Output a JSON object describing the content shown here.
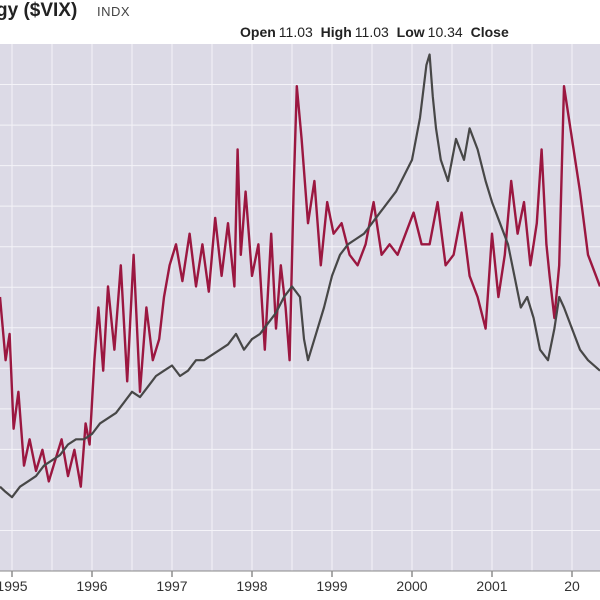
{
  "header": {
    "title": "gy ($VIX)",
    "exchange": "INDX",
    "open_label": "Open",
    "open_value": "11.03",
    "high_label": "High",
    "high_value": "11.03",
    "low_label": "Low",
    "low_value": "10.34",
    "close_label": "Close"
  },
  "colors": {
    "plot_background": "#dcdae6",
    "grid": "#f4f3f8",
    "vix_series": "#9b1740",
    "index_series": "#474747"
  },
  "chart_data": {
    "type": "line",
    "title": "gy ($VIX)",
    "xlabel": "",
    "ylabel": "",
    "x_tick_labels": [
      "1995",
      "1996",
      "1997",
      "1998",
      "1999",
      "2000",
      "2001",
      "20"
    ],
    "xlim": [
      1994.85,
      2002.35
    ],
    "ylim": [
      0,
      100
    ],
    "grid": true,
    "legend": "none",
    "series": [
      {
        "color": "#9b1740",
        "x": [
          1994.85,
          1994.92,
          1994.97,
          1995.02,
          1995.08,
          1995.15,
          1995.22,
          1995.3,
          1995.38,
          1995.46,
          1995.54,
          1995.62,
          1995.7,
          1995.78,
          1995.86,
          1995.92,
          1995.97,
          1996.03,
          1996.08,
          1996.14,
          1996.2,
          1996.28,
          1996.36,
          1996.44,
          1996.52,
          1996.6,
          1996.68,
          1996.76,
          1996.84,
          1996.9,
          1996.97,
          1997.05,
          1997.13,
          1997.22,
          1997.3,
          1997.38,
          1997.46,
          1997.54,
          1997.62,
          1997.7,
          1997.78,
          1997.82,
          1997.86,
          1997.92,
          1998.0,
          1998.08,
          1998.16,
          1998.24,
          1998.3,
          1998.36,
          1998.42,
          1998.47,
          1998.52,
          1998.56,
          1998.62,
          1998.7,
          1998.78,
          1998.86,
          1998.94,
          1999.02,
          1999.12,
          1999.22,
          1999.32,
          1999.42,
          1999.52,
          1999.62,
          1999.72,
          1999.82,
          1999.92,
          2000.02,
          2000.12,
          2000.22,
          2000.32,
          2000.42,
          2000.52,
          2000.62,
          2000.72,
          2000.82,
          2000.92,
          2001.0,
          2001.08,
          2001.16,
          2001.24,
          2001.32,
          2001.4,
          2001.48,
          2001.56,
          2001.62,
          2001.68,
          2001.72,
          2001.78,
          2001.84,
          2001.9,
          2002.0,
          2002.1,
          2002.2,
          2002.35
        ],
        "y": [
          52,
          40,
          45,
          27,
          34,
          20,
          25,
          19,
          23,
          17,
          21,
          25,
          18,
          23,
          16,
          28,
          24,
          40,
          50,
          38,
          54,
          42,
          58,
          36,
          60,
          34,
          50,
          40,
          44,
          52,
          58,
          62,
          55,
          64,
          54,
          62,
          53,
          67,
          56,
          66,
          54,
          80,
          60,
          72,
          56,
          62,
          42,
          64,
          46,
          58,
          50,
          40,
          72,
          92,
          82,
          66,
          74,
          58,
          70,
          64,
          66,
          60,
          58,
          62,
          70,
          60,
          62,
          60,
          64,
          68,
          62,
          62,
          70,
          58,
          60,
          68,
          56,
          52,
          46,
          64,
          52,
          60,
          74,
          64,
          70,
          58,
          66,
          80,
          62,
          56,
          48,
          58,
          92,
          82,
          72,
          60,
          54
        ]
      },
      {
        "color": "#474747",
        "x": [
          1994.85,
          1994.92,
          1995.0,
          1995.1,
          1995.2,
          1995.3,
          1995.4,
          1995.5,
          1995.6,
          1995.7,
          1995.8,
          1995.9,
          1996.0,
          1996.1,
          1996.2,
          1996.3,
          1996.4,
          1996.5,
          1996.6,
          1996.7,
          1996.8,
          1996.9,
          1997.0,
          1997.1,
          1997.2,
          1997.3,
          1997.4,
          1997.5,
          1997.6,
          1997.7,
          1997.8,
          1997.9,
          1998.0,
          1998.1,
          1998.2,
          1998.3,
          1998.4,
          1998.5,
          1998.6,
          1998.65,
          1998.7,
          1998.8,
          1998.9,
          1999.0,
          1999.1,
          1999.2,
          1999.3,
          1999.4,
          1999.5,
          1999.6,
          1999.7,
          1999.8,
          1999.9,
          2000.0,
          2000.1,
          2000.18,
          2000.22,
          2000.26,
          2000.3,
          2000.36,
          2000.45,
          2000.55,
          2000.65,
          2000.72,
          2000.82,
          2000.92,
          2001.0,
          2001.1,
          2001.2,
          2001.28,
          2001.36,
          2001.44,
          2001.52,
          2001.6,
          2001.7,
          2001.78,
          2001.84,
          2001.9,
          2002.0,
          2002.1,
          2002.2,
          2002.35
        ],
        "y": [
          16,
          15,
          14,
          16,
          17,
          18,
          20,
          21,
          22,
          24,
          25,
          25,
          26,
          28,
          29,
          30,
          32,
          34,
          33,
          35,
          37,
          38,
          39,
          37,
          38,
          40,
          40,
          41,
          42,
          43,
          45,
          42,
          44,
          45,
          47,
          49,
          52,
          54,
          52,
          44,
          40,
          45,
          50,
          56,
          60,
          62,
          63,
          64,
          66,
          68,
          70,
          72,
          75,
          78,
          86,
          96,
          98,
          90,
          84,
          78,
          74,
          82,
          78,
          84,
          80,
          74,
          70,
          66,
          62,
          56,
          50,
          52,
          48,
          42,
          40,
          46,
          52,
          50,
          46,
          42,
          40,
          38
        ]
      }
    ]
  }
}
